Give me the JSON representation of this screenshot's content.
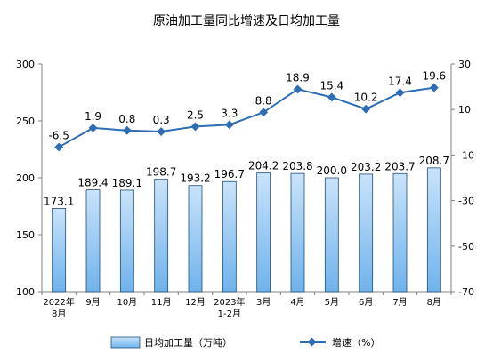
{
  "chart_data": {
    "type": "bar",
    "title": "原油加工量同比增速及日均加工量",
    "categories": [
      [
        "2022年",
        "8月"
      ],
      [
        "9月"
      ],
      [
        "10月"
      ],
      [
        "11月"
      ],
      [
        "12月"
      ],
      [
        "2023年",
        "1-2月"
      ],
      [
        "3月"
      ],
      [
        "4月"
      ],
      [
        "5月"
      ],
      [
        "6月"
      ],
      [
        "7月"
      ],
      [
        "8月"
      ]
    ],
    "series": [
      {
        "name": "日均加工量（万吨）",
        "type": "bar",
        "axis": "left",
        "values": [
          173.1,
          189.4,
          189.1,
          198.7,
          193.2,
          196.7,
          204.2,
          203.8,
          200.0,
          203.2,
          203.7,
          208.7
        ],
        "labels": [
          "173.1",
          "189.4",
          "189.1",
          "198.7",
          "193.2",
          "196.7",
          "204.2",
          "203.8",
          "200.0",
          "203.2",
          "203.7",
          "208.7"
        ]
      },
      {
        "name": "增速（%）",
        "type": "line",
        "axis": "right",
        "values": [
          -6.5,
          1.9,
          0.8,
          0.3,
          2.5,
          3.3,
          8.8,
          18.9,
          15.4,
          10.2,
          17.4,
          19.6
        ],
        "labels": [
          "-6.5",
          "1.9",
          "0.8",
          "0.3",
          "2.5",
          "3.3",
          "8.8",
          "18.9",
          "15.4",
          "10.2",
          "17.4",
          "19.6"
        ]
      }
    ],
    "y_left": {
      "min": 100,
      "max": 300,
      "ticks": [
        "100",
        "150",
        "200",
        "250",
        "300"
      ]
    },
    "y_right": {
      "min": -70,
      "max": 30,
      "ticks": [
        "-70",
        "-50",
        "-30",
        "-10",
        "10",
        "30"
      ]
    },
    "grid": false,
    "legend_position": "bottom",
    "colors": {
      "bar_fill_top": "#c9e3fa",
      "bar_fill_bottom": "#6fb3ec",
      "bar_stroke": "#1f4e79",
      "line": "#2e6db4",
      "axis": "#808080"
    }
  }
}
